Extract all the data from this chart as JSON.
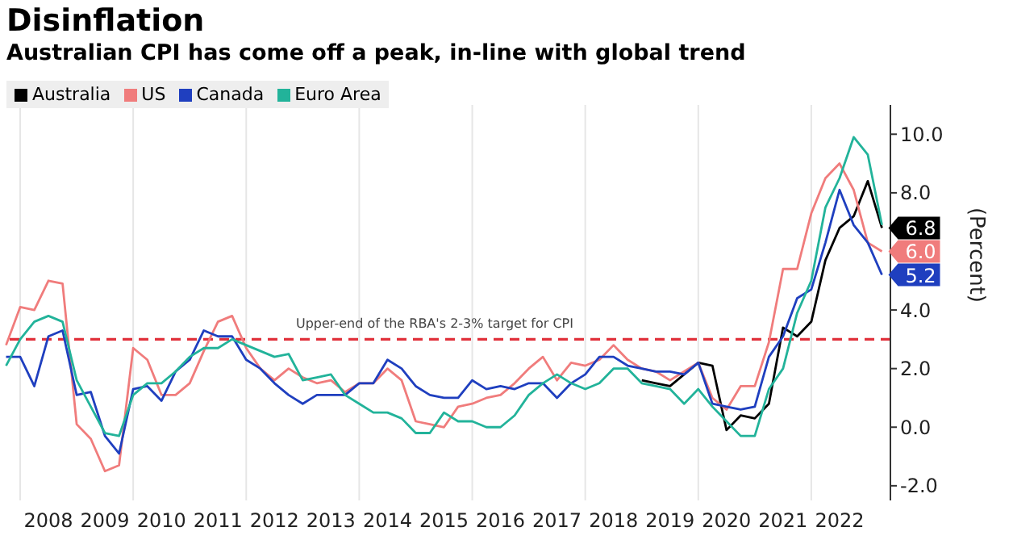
{
  "chart_data": {
    "type": "line",
    "title": "Disinflation",
    "subtitle": "Australian CPI has come off a peak, in-line with global trend",
    "ylabel": "(Percent)",
    "x": [
      2007.75,
      2008,
      2008.25,
      2008.5,
      2008.75,
      2009,
      2009.25,
      2009.5,
      2009.75,
      2010,
      2010.25,
      2010.5,
      2010.75,
      2011,
      2011.25,
      2011.5,
      2011.75,
      2012,
      2012.25,
      2012.5,
      2012.75,
      2013,
      2013.25,
      2013.5,
      2013.75,
      2014,
      2014.25,
      2014.5,
      2014.75,
      2015,
      2015.25,
      2015.5,
      2015.75,
      2016,
      2016.25,
      2016.5,
      2016.75,
      2017,
      2017.25,
      2017.5,
      2017.75,
      2018,
      2018.25,
      2018.5,
      2018.75,
      2019,
      2019.25,
      2019.5,
      2019.75,
      2020,
      2020.25,
      2020.5,
      2020.75,
      2021,
      2021.25,
      2021.5,
      2021.75,
      2022,
      2022.25,
      2022.5,
      2022.75,
      2023,
      2023.25
    ],
    "series": [
      {
        "name": "Australia",
        "color": "#000000",
        "values": [
          null,
          null,
          null,
          null,
          null,
          null,
          null,
          null,
          null,
          null,
          null,
          null,
          null,
          null,
          null,
          null,
          null,
          null,
          null,
          null,
          null,
          null,
          null,
          null,
          null,
          null,
          null,
          null,
          null,
          null,
          null,
          null,
          null,
          null,
          null,
          null,
          null,
          null,
          null,
          null,
          null,
          null,
          null,
          null,
          null,
          1.6,
          1.5,
          1.4,
          1.8,
          2.2,
          2.1,
          -0.1,
          0.4,
          0.3,
          0.8,
          3.4,
          3.1,
          3.6,
          5.7,
          6.8,
          7.2,
          8.4,
          6.8
        ],
        "value_labels": [
          null,
          null,
          null,
          null,
          null,
          null,
          null,
          null,
          null,
          null,
          null,
          null,
          null,
          null,
          null,
          null,
          null,
          null,
          null,
          null,
          null,
          null,
          null,
          null,
          null,
          null,
          null,
          null,
          null,
          null,
          null,
          null,
          null,
          null,
          null,
          null,
          null,
          null,
          null,
          null,
          null,
          null,
          null,
          null,
          null,
          null,
          null,
          null,
          null,
          null,
          null,
          null,
          null,
          null,
          null,
          null,
          null,
          null,
          null,
          null,
          null,
          null,
          "6.8"
        ]
      },
      {
        "name": "US",
        "color": "#f07c7c",
        "values": [
          2.8,
          4.1,
          4.0,
          5.0,
          4.9,
          0.1,
          -0.4,
          -1.5,
          -1.3,
          2.7,
          2.3,
          1.1,
          1.1,
          1.5,
          2.6,
          3.6,
          3.8,
          2.7,
          2.0,
          1.6,
          2.0,
          1.7,
          1.5,
          1.6,
          1.2,
          1.5,
          1.5,
          2.0,
          1.6,
          0.2,
          0.1,
          0.0,
          0.7,
          0.8,
          1.0,
          1.1,
          1.5,
          2.0,
          2.4,
          1.6,
          2.2,
          2.1,
          2.3,
          2.8,
          2.3,
          2.0,
          1.9,
          1.6,
          1.9,
          2.2,
          1.0,
          0.6,
          1.4,
          1.4,
          2.9,
          5.4,
          5.4,
          7.3,
          8.5,
          9.0,
          8.1,
          6.3,
          6.0
        ],
        "value_labels": [
          null,
          null,
          null,
          null,
          null,
          null,
          null,
          null,
          null,
          null,
          null,
          null,
          null,
          null,
          null,
          null,
          null,
          null,
          null,
          null,
          null,
          null,
          null,
          null,
          null,
          null,
          null,
          null,
          null,
          null,
          null,
          null,
          null,
          null,
          null,
          null,
          null,
          null,
          null,
          null,
          null,
          null,
          null,
          null,
          null,
          null,
          null,
          null,
          null,
          null,
          null,
          null,
          null,
          null,
          null,
          null,
          null,
          null,
          null,
          null,
          null,
          null,
          "6.0"
        ]
      },
      {
        "name": "Canada",
        "color": "#1f3fbf",
        "values": [
          2.4,
          2.4,
          1.4,
          3.1,
          3.3,
          1.1,
          1.2,
          -0.3,
          -0.9,
          1.3,
          1.4,
          0.9,
          1.9,
          2.3,
          3.3,
          3.1,
          3.1,
          2.3,
          2.0,
          1.5,
          1.1,
          0.8,
          1.1,
          1.1,
          1.1,
          1.5,
          1.5,
          2.3,
          2.0,
          1.4,
          1.1,
          1.0,
          1.0,
          1.6,
          1.3,
          1.4,
          1.3,
          1.5,
          1.5,
          1.0,
          1.5,
          1.8,
          2.4,
          2.4,
          2.1,
          2.0,
          1.9,
          1.9,
          1.8,
          2.2,
          0.8,
          0.7,
          0.6,
          0.7,
          2.4,
          3.1,
          4.4,
          4.7,
          6.3,
          8.1,
          6.9,
          6.3,
          5.2
        ],
        "value_labels": [
          null,
          null,
          null,
          null,
          null,
          null,
          null,
          null,
          null,
          null,
          null,
          null,
          null,
          null,
          null,
          null,
          null,
          null,
          null,
          null,
          null,
          null,
          null,
          null,
          null,
          null,
          null,
          null,
          null,
          null,
          null,
          null,
          null,
          null,
          null,
          null,
          null,
          null,
          null,
          null,
          null,
          null,
          null,
          null,
          null,
          null,
          null,
          null,
          null,
          null,
          null,
          null,
          null,
          null,
          null,
          null,
          null,
          null,
          null,
          null,
          null,
          null,
          "5.2"
        ]
      },
      {
        "name": "Euro Area",
        "color": "#22b39a",
        "values": [
          2.1,
          3.0,
          3.6,
          3.8,
          3.6,
          1.6,
          0.7,
          -0.2,
          -0.3,
          1.1,
          1.5,
          1.5,
          1.9,
          2.4,
          2.7,
          2.7,
          3.0,
          2.8,
          2.6,
          2.4,
          2.5,
          1.6,
          1.7,
          1.8,
          1.1,
          0.8,
          0.5,
          0.5,
          0.3,
          -0.2,
          -0.2,
          0.5,
          0.2,
          0.2,
          0.0,
          0.0,
          0.4,
          1.1,
          1.5,
          1.8,
          1.5,
          1.3,
          1.5,
          2.0,
          2.0,
          1.5,
          1.4,
          1.3,
          0.8,
          1.3,
          0.7,
          0.2,
          -0.3,
          -0.3,
          1.3,
          2.0,
          3.9,
          5.0,
          7.5,
          8.5,
          9.9,
          9.3,
          6.9
        ]
      }
    ],
    "xlim": [
      2007.7,
      2023.4
    ],
    "xticks": [
      {
        "value": 2008,
        "label": null
      },
      {
        "value": 2008.5,
        "label": "2008"
      },
      {
        "value": 2009.5,
        "label": "2009"
      },
      {
        "value": 2010,
        "label": null
      },
      {
        "value": 2010.5,
        "label": "2010"
      },
      {
        "value": 2011.5,
        "label": "2011"
      },
      {
        "value": 2012,
        "label": null
      },
      {
        "value": 2012.5,
        "label": "2012"
      },
      {
        "value": 2013.5,
        "label": "2013"
      },
      {
        "value": 2014,
        "label": null
      },
      {
        "value": 2014.5,
        "label": "2014"
      },
      {
        "value": 2015.5,
        "label": "2015"
      },
      {
        "value": 2016,
        "label": null
      },
      {
        "value": 2016.5,
        "label": "2016"
      },
      {
        "value": 2017.5,
        "label": "2017"
      },
      {
        "value": 2018,
        "label": null
      },
      {
        "value": 2018.5,
        "label": "2018"
      },
      {
        "value": 2019.5,
        "label": "2019"
      },
      {
        "value": 2020,
        "label": null
      },
      {
        "value": 2020.5,
        "label": "2020"
      },
      {
        "value": 2021.5,
        "label": "2021"
      },
      {
        "value": 2022,
        "label": null
      },
      {
        "value": 2022.5,
        "label": "2022"
      }
    ],
    "ylim": [
      -2.5,
      11
    ],
    "yticks": [
      {
        "value": -2,
        "label": "-2.0"
      },
      {
        "value": 0,
        "label": "0.0"
      },
      {
        "value": 2,
        "label": "2.0"
      },
      {
        "value": 4,
        "label": "4.0"
      },
      {
        "value": 6,
        "label": null
      },
      {
        "value": 8,
        "label": "8.0"
      },
      {
        "value": 10,
        "label": "10.0"
      }
    ],
    "ref_lines": [
      {
        "axis": "y",
        "value": 3,
        "label": "Upper-end of the RBA's 2-3% target for CPI",
        "color": "#e0303a",
        "line_style": "dashed"
      }
    ],
    "grid": true,
    "legend": "top left",
    "marker": "none",
    "line_style": "solid"
  }
}
